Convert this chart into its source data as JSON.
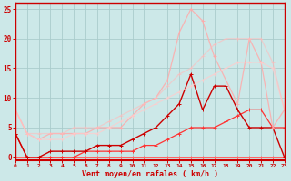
{
  "background_color": "#cce8e8",
  "grid_color": "#aacccc",
  "xlabel": "Vent moyen/en rafales ( km/h )",
  "xlim": [
    0,
    23
  ],
  "ylim": [
    -0.5,
    26
  ],
  "xtick_labels": [
    "0",
    "1",
    "2",
    "3",
    "4",
    "5",
    "6",
    "7",
    "8",
    "9",
    "10",
    "11",
    "12",
    "13",
    "14",
    "15",
    "16",
    "17",
    "18",
    "19",
    "20",
    "21",
    "22",
    "23"
  ],
  "ytick_values": [
    0,
    5,
    10,
    15,
    20,
    25
  ],
  "lines": [
    {
      "x": [
        0,
        1,
        2,
        3,
        4,
        5,
        6,
        7,
        8,
        9,
        10,
        11,
        12,
        13,
        14,
        15,
        16,
        17,
        18,
        19,
        20,
        21,
        22,
        23
      ],
      "y": [
        0,
        0,
        0,
        0,
        0,
        0,
        0,
        0,
        0,
        0,
        0,
        0,
        0,
        0,
        0,
        0,
        0,
        0,
        0,
        0,
        0,
        0,
        0,
        0
      ],
      "color": "#ff6666",
      "lw": 0.8,
      "marker": "+",
      "ms": 3,
      "alpha": 1.0
    },
    {
      "x": [
        0,
        1,
        2,
        3,
        4,
        5,
        6,
        7,
        8,
        9,
        10,
        11,
        12,
        13,
        14,
        15,
        16,
        17,
        18,
        19,
        20,
        21,
        22,
        23
      ],
      "y": [
        4,
        0,
        0,
        0,
        0,
        0,
        1,
        1,
        1,
        1,
        1,
        2,
        2,
        3,
        4,
        5,
        5,
        5,
        6,
        7,
        8,
        8,
        5,
        5
      ],
      "color": "#ff3333",
      "lw": 0.9,
      "marker": "+",
      "ms": 3,
      "alpha": 1.0
    },
    {
      "x": [
        0,
        1,
        2,
        3,
        4,
        5,
        6,
        7,
        8,
        9,
        10,
        11,
        12,
        13,
        14,
        15,
        16,
        17,
        18,
        19,
        20,
        21,
        22,
        23
      ],
      "y": [
        4,
        0,
        0,
        1,
        1,
        1,
        1,
        2,
        2,
        2,
        3,
        4,
        5,
        7,
        9,
        14,
        8,
        12,
        12,
        8,
        5,
        5,
        5,
        0
      ],
      "color": "#cc0000",
      "lw": 1.0,
      "marker": "+",
      "ms": 3,
      "alpha": 1.0
    },
    {
      "x": [
        0,
        1,
        2,
        3,
        4,
        5,
        6,
        7,
        8,
        9,
        10,
        11,
        12,
        13,
        14,
        15,
        16,
        17,
        18,
        19,
        20,
        21,
        22,
        23
      ],
      "y": [
        8,
        4,
        3,
        4,
        4,
        4,
        4,
        5,
        5,
        5,
        7,
        9,
        10,
        13,
        21,
        25,
        23,
        17,
        13,
        9,
        20,
        16,
        5,
        8
      ],
      "color": "#ffaaaa",
      "lw": 0.9,
      "marker": "+",
      "ms": 3,
      "alpha": 0.85
    },
    {
      "x": [
        0,
        1,
        2,
        3,
        4,
        5,
        6,
        7,
        8,
        9,
        10,
        11,
        12,
        13,
        14,
        15,
        16,
        17,
        18,
        19,
        20,
        21,
        22,
        23
      ],
      "y": [
        8,
        4,
        3,
        3,
        3,
        4,
        4,
        4,
        5,
        6,
        7,
        8,
        9,
        10,
        11,
        12,
        13,
        14,
        15,
        16,
        16,
        16,
        15,
        8
      ],
      "color": "#ffcccc",
      "lw": 0.9,
      "marker": "+",
      "ms": 3,
      "alpha": 0.75
    },
    {
      "x": [
        0,
        1,
        2,
        3,
        4,
        5,
        6,
        7,
        8,
        9,
        10,
        11,
        12,
        13,
        14,
        15,
        16,
        17,
        18,
        19,
        20,
        21,
        22,
        23
      ],
      "y": [
        8,
        4,
        4,
        4,
        4,
        5,
        5,
        5,
        6,
        7,
        8,
        9,
        10,
        12,
        14,
        15,
        17,
        19,
        20,
        20,
        20,
        20,
        16,
        8
      ],
      "color": "#ffbbbb",
      "lw": 0.9,
      "marker": "+",
      "ms": 3,
      "alpha": 0.6
    }
  ]
}
